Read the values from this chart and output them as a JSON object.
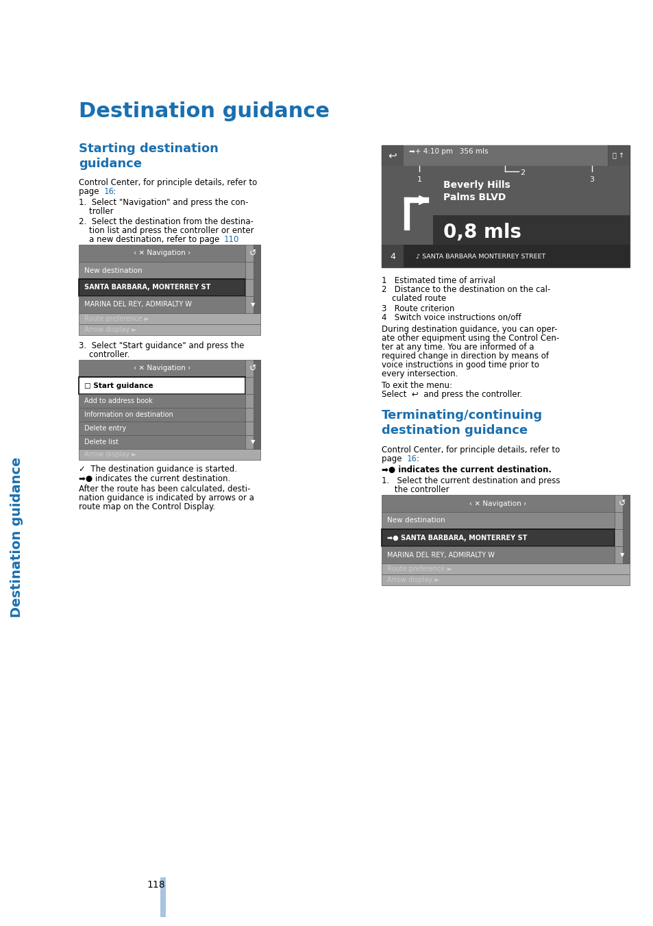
{
  "page_bg": "#ffffff",
  "title": "Destination guidance",
  "title_color": "#1a6faf",
  "title_fontsize": 22,
  "section1_title": "Starting destination\nguidance",
  "section1_color": "#1a6faf",
  "section1_fontsize": 13,
  "section2_title": "Terminating/continuing\ndestination guidance",
  "section2_color": "#1a6faf",
  "section2_fontsize": 13,
  "sidebar_text": "Destination guidance",
  "sidebar_color": "#1a6faf",
  "body_color": "#000000",
  "body_fontsize": 8.5,
  "link_color": "#1a6faf",
  "page_number": "118",
  "page_num_color": "#000000",
  "blue_bar_color": "#a8c4e0"
}
